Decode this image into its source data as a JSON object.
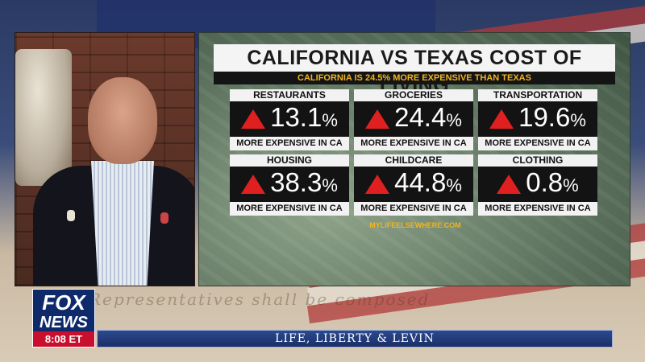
{
  "graphic": {
    "title": "CALIFORNIA VS TEXAS COST OF LIVING",
    "subtitle": "CALIFORNIA IS 24.5% MORE EXPENSIVE THAN TEXAS",
    "tiles": [
      {
        "label": "RESTAURANTS",
        "value": "13.1",
        "unit": "%",
        "footer": "MORE EXPENSIVE IN CA"
      },
      {
        "label": "GROCERIES",
        "value": "24.4",
        "unit": "%",
        "footer": "MORE EXPENSIVE IN CA"
      },
      {
        "label": "TRANSPORTATION",
        "value": "19.6",
        "unit": "%",
        "footer": "MORE EXPENSIVE IN CA"
      },
      {
        "label": "HOUSING",
        "value": "38.3",
        "unit": "%",
        "footer": "MORE EXPENSIVE IN CA"
      },
      {
        "label": "CHILDCARE",
        "value": "44.8",
        "unit": "%",
        "footer": "MORE EXPENSIVE IN CA"
      },
      {
        "label": "CLOTHING",
        "value": "0.8",
        "unit": "%",
        "footer": "MORE EXPENSIVE IN CA"
      }
    ],
    "source": "MYLIFEELSEWHERE.COM",
    "accent_color": "#e02020",
    "highlight_color": "#f0b424"
  },
  "logo": {
    "line1": "FOX",
    "line2": "NEWS",
    "time": "8:08 ET"
  },
  "show": {
    "name": "LIFE, LIBERTY & LEVIN"
  },
  "background": {
    "script_text": "Representatives shall be composed"
  }
}
